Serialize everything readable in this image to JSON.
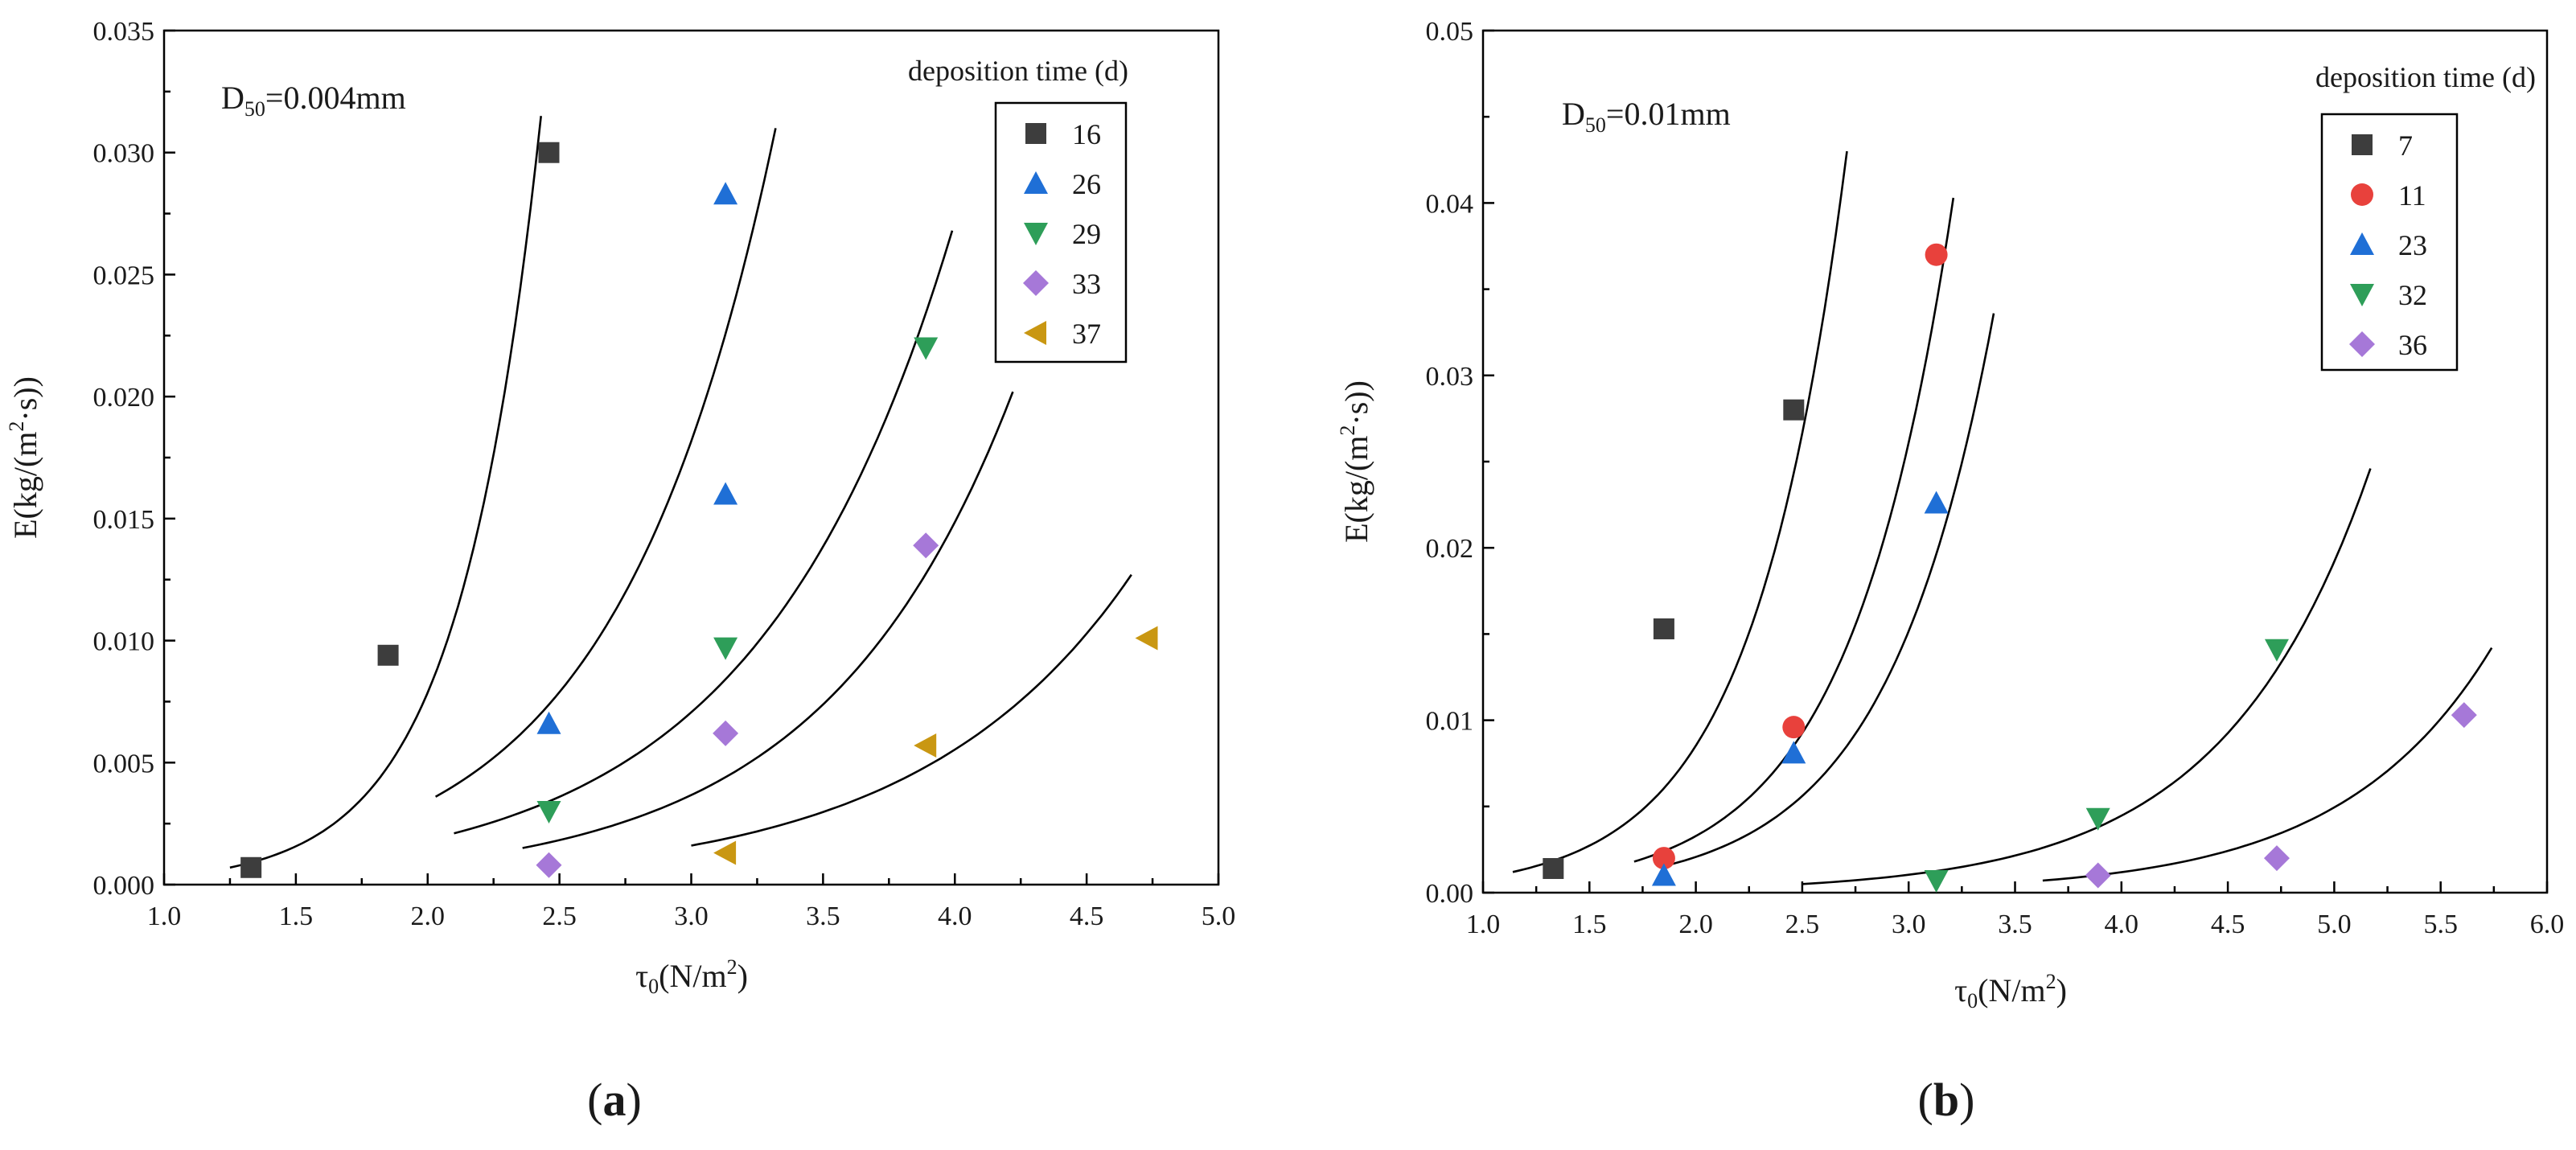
{
  "panel_labels": {
    "a": "(a)",
    "b": "(b)"
  },
  "chart_data": [
    {
      "id": "a",
      "type": "scatter",
      "annotation": {
        "prefix": "D",
        "sub": "50",
        "suffix": "=0.004mm"
      },
      "xlabel": {
        "main": "τ",
        "sub": "0",
        "pre_sup": "(N/m",
        "sup": "2",
        "post": ")"
      },
      "ylabel": {
        "pre_sup": "E(kg/(m",
        "sup": "2",
        "post": "·s))"
      },
      "xlim": [
        1.0,
        5.0
      ],
      "ylim": [
        0.0,
        0.035
      ],
      "xticks": [
        "1.0",
        "1.5",
        "2.0",
        "2.5",
        "3.0",
        "3.5",
        "4.0",
        "4.5",
        "5.0"
      ],
      "yticks": [
        "0.000",
        "0.005",
        "0.010",
        "0.015",
        "0.020",
        "0.025",
        "0.030",
        "0.035"
      ],
      "legend_title": "deposition time (d)",
      "legend_position": "top-right",
      "series": [
        {
          "name": "16",
          "marker": "square",
          "color": "#3d3d3d",
          "points": [
            [
              1.33,
              0.0007
            ],
            [
              1.85,
              0.0094
            ],
            [
              2.46,
              0.03
            ]
          ],
          "fit": {
            "x0": 1.25,
            "x1": 2.43,
            "y0": 0.0007,
            "y1": 0.0315
          }
        },
        {
          "name": "26",
          "marker": "triangle-up",
          "color": "#1f6fd6",
          "points": [
            [
              2.46,
              0.0066
            ],
            [
              3.13,
              0.016
            ],
            [
              3.13,
              0.0283
            ]
          ],
          "fit": {
            "x0": 2.03,
            "x1": 3.32,
            "y0": 0.0036,
            "y1": 0.031
          }
        },
        {
          "name": "29",
          "marker": "triangle-down",
          "color": "#2e9e59",
          "points": [
            [
              2.46,
              0.003
            ],
            [
              3.13,
              0.0097
            ],
            [
              3.89,
              0.022
            ]
          ],
          "fit": {
            "x0": 2.1,
            "x1": 3.99,
            "y0": 0.0021,
            "y1": 0.0268
          }
        },
        {
          "name": "33",
          "marker": "diamond",
          "color": "#a678d8",
          "points": [
            [
              2.46,
              0.0008
            ],
            [
              3.13,
              0.0062
            ],
            [
              3.89,
              0.0139
            ]
          ],
          "fit": {
            "x0": 2.36,
            "x1": 4.22,
            "y0": 0.0015,
            "y1": 0.0202
          }
        },
        {
          "name": "37",
          "marker": "triangle-left",
          "color": "#c99712",
          "points": [
            [
              3.13,
              0.0013
            ],
            [
              3.89,
              0.0057
            ],
            [
              4.73,
              0.0101
            ]
          ],
          "fit": {
            "x0": 3.0,
            "x1": 4.67,
            "y0": 0.0016,
            "y1": 0.0127
          }
        }
      ]
    },
    {
      "id": "b",
      "type": "scatter",
      "annotation": {
        "prefix": "D",
        "sub": "50",
        "suffix": "=0.01mm"
      },
      "xlabel": {
        "main": "τ",
        "sub": "0",
        "pre_sup": "(N/m",
        "sup": "2",
        "post": ")"
      },
      "ylabel": {
        "pre_sup": "E(kg/(m",
        "sup": "2",
        "post": "·s))"
      },
      "xlim": [
        1.0,
        6.0
      ],
      "ylim": [
        0.0,
        0.05
      ],
      "xticks": [
        "1.0",
        "1.5",
        "2.0",
        "2.5",
        "3.0",
        "3.5",
        "4.0",
        "4.5",
        "5.0",
        "5.5",
        "6.0"
      ],
      "yticks": [
        "0.00",
        "0.01",
        "0.02",
        "0.03",
        "0.04",
        "0.05"
      ],
      "legend_title": "deposition time (d)",
      "legend_position": "top-right",
      "series": [
        {
          "name": "7",
          "marker": "square",
          "color": "#3d3d3d",
          "points": [
            [
              1.33,
              0.0014
            ],
            [
              1.85,
              0.0153
            ],
            [
              2.46,
              0.028
            ]
          ],
          "fit": {
            "x0": 1.14,
            "x1": 2.71,
            "y0": 0.0012,
            "y1": 0.043
          }
        },
        {
          "name": "11",
          "marker": "circle",
          "color": "#e8413c",
          "points": [
            [
              1.85,
              0.002
            ],
            [
              2.46,
              0.0096
            ],
            [
              3.13,
              0.037
            ]
          ],
          "fit": {
            "x0": 1.71,
            "x1": 3.21,
            "y0": 0.0018,
            "y1": 0.0403
          }
        },
        {
          "name": "23",
          "marker": "triangle-up",
          "color": "#1f6fd6",
          "points": [
            [
              1.85,
              0.001
            ],
            [
              2.46,
              0.0081
            ],
            [
              3.13,
              0.0226
            ]
          ],
          "fit": {
            "x0": 1.87,
            "x1": 3.4,
            "y0": 0.0016,
            "y1": 0.0336
          }
        },
        {
          "name": "32",
          "marker": "triangle-down",
          "color": "#2e9e59",
          "points": [
            [
              3.13,
              0.0007
            ],
            [
              3.89,
              0.0043
            ],
            [
              4.73,
              0.0141
            ]
          ],
          "fit": {
            "x0": 2.5,
            "x1": 5.17,
            "y0": 0.0005,
            "y1": 0.0246
          }
        },
        {
          "name": "36",
          "marker": "diamond",
          "color": "#a678d8",
          "points": [
            [
              3.89,
              0.001
            ],
            [
              4.73,
              0.002
            ],
            [
              5.61,
              0.0103
            ]
          ],
          "fit": {
            "x0": 3.63,
            "x1": 5.74,
            "y0": 0.0007,
            "y1": 0.0142
          }
        }
      ]
    }
  ]
}
